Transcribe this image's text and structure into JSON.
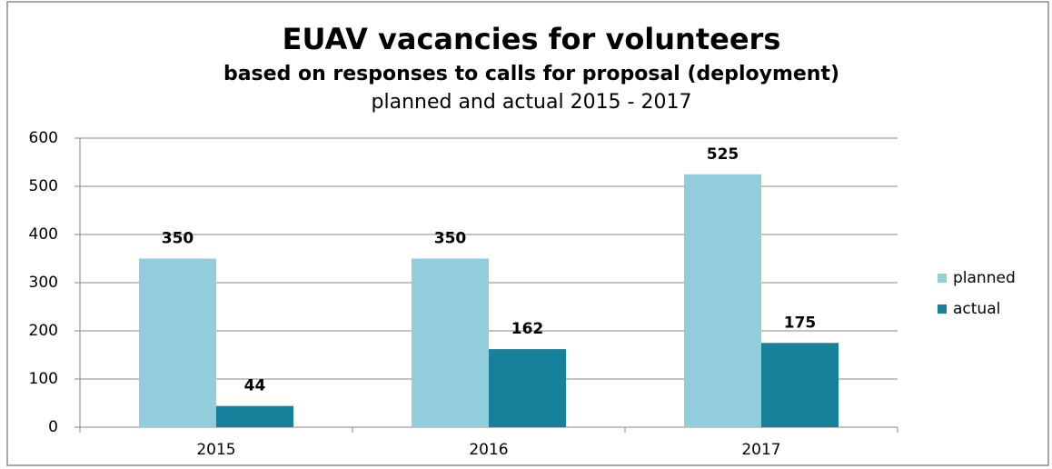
{
  "chart_data": {
    "type": "bar",
    "title": "EUAV vacancies for volunteers",
    "subtitle": [
      "based on responses to calls for proposal (deployment)",
      "planned and actual 2015 - 2017"
    ],
    "categories": [
      "2015",
      "2016",
      "2017"
    ],
    "series": [
      {
        "name": "planned",
        "color": "#92cddc",
        "values": [
          350,
          350,
          525
        ]
      },
      {
        "name": "actual",
        "color": "#17809a",
        "values": [
          44,
          162,
          175
        ]
      }
    ],
    "ylim": [
      0,
      600
    ],
    "yticks": [
      0,
      100,
      200,
      300,
      400,
      500,
      600
    ],
    "grid": true,
    "legend": "right"
  }
}
